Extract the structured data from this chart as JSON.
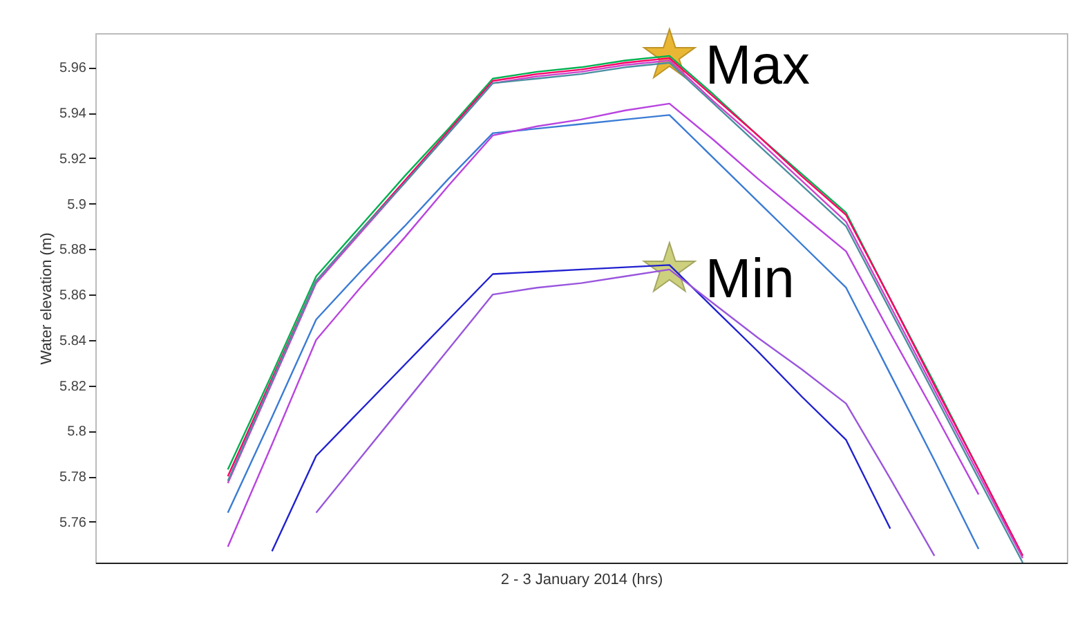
{
  "chart_data": {
    "type": "line",
    "xlabel": "2 - 3 January 2014 (hrs)",
    "ylabel": "Water elevation (m)",
    "categories": [
      null,
      null,
      null,
      null,
      null,
      null,
      null,
      null,
      null,
      null,
      null,
      null,
      null,
      null,
      null,
      null,
      null,
      null,
      null,
      null,
      null
    ],
    "ylim": [
      5.742,
      5.975
    ],
    "yticks": [
      5.76,
      5.78,
      5.8,
      5.82,
      5.84,
      5.86,
      5.88,
      5.9,
      5.92,
      5.94,
      5.96
    ],
    "tick_labels": "y",
    "grid": false,
    "legend": false,
    "line_style": "solid",
    "marker": "none",
    "series": [
      {
        "color": "#00b050",
        "values": [
          null,
          null,
          5.783,
          5.825,
          5.868,
          5.89,
          5.912,
          5.933,
          5.955,
          5.958,
          5.96,
          5.963,
          5.965,
          5.948,
          5.93,
          5.913,
          5.896,
          5.858,
          5.821,
          5.783,
          5.745
        ]
      },
      {
        "color": "#ff0066",
        "values": [
          null,
          null,
          5.78,
          5.823,
          5.866,
          5.888,
          5.91,
          5.932,
          5.954,
          5.957,
          5.959,
          5.962,
          5.964,
          5.947,
          5.93,
          5.912,
          5.895,
          5.858,
          5.82,
          5.783,
          5.745
        ]
      },
      {
        "color": "#cc44cc",
        "values": [
          null,
          null,
          5.777,
          5.821,
          5.865,
          5.887,
          5.909,
          5.931,
          5.953,
          5.956,
          5.958,
          5.961,
          5.963,
          5.945,
          5.928,
          5.91,
          5.892,
          5.855,
          5.818,
          5.781,
          5.744
        ]
      },
      {
        "color": "#4a8fa0",
        "values": [
          null,
          null,
          5.778,
          5.822,
          5.866,
          5.888,
          5.909,
          5.931,
          5.953,
          5.955,
          5.957,
          5.96,
          5.962,
          5.944,
          5.926,
          5.908,
          5.89,
          5.853,
          5.816,
          5.779,
          5.742
        ]
      },
      {
        "color": "#3a7bd5",
        "values": [
          null,
          null,
          5.764,
          5.806,
          5.849,
          5.87,
          5.89,
          5.911,
          5.931,
          5.933,
          5.935,
          5.937,
          5.939,
          5.92,
          5.901,
          5.882,
          5.863,
          5.825,
          5.787,
          5.748,
          null
        ]
      },
      {
        "color": "#b844e0",
        "values": [
          null,
          null,
          5.749,
          5.794,
          5.84,
          5.863,
          5.885,
          5.908,
          5.93,
          5.934,
          5.937,
          5.941,
          5.944,
          5.928,
          5.911,
          5.895,
          5.879,
          5.843,
          5.808,
          5.772,
          null
        ]
      },
      {
        "color": "#2020d0",
        "values": [
          null,
          null,
          null,
          5.747,
          5.789,
          5.809,
          5.829,
          5.849,
          5.869,
          5.87,
          5.871,
          5.872,
          5.873,
          5.854,
          5.835,
          5.815,
          5.796,
          5.757,
          null,
          null,
          null
        ]
      },
      {
        "color": "#9955dd",
        "values": [
          null,
          null,
          null,
          null,
          5.764,
          5.788,
          5.812,
          5.836,
          5.86,
          5.863,
          5.865,
          5.868,
          5.871,
          5.856,
          5.841,
          5.827,
          5.812,
          5.779,
          5.745,
          null,
          null
        ]
      }
    ],
    "annotations": [
      "Max",
      "Min"
    ]
  }
}
